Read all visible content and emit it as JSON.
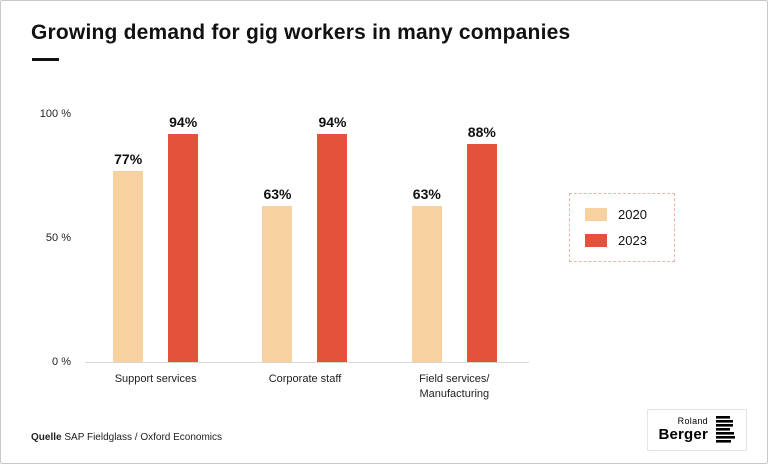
{
  "title": "Growing demand for gig workers in many companies",
  "chart_data": {
    "type": "bar",
    "title": "Growing demand for gig workers in many companies",
    "categories": [
      "Support services",
      "Corporate staff",
      "Field services/\nManufacturing"
    ],
    "series": [
      {
        "name": "2020",
        "color": "#F7D2A0",
        "values": [
          77,
          63,
          63
        ]
      },
      {
        "name": "2023",
        "color": "#E4523C",
        "values": [
          94,
          94,
          88
        ]
      }
    ],
    "value_suffix": "%",
    "ylim": [
      0,
      100
    ],
    "yticks": [
      {
        "label": "100 %",
        "value": 100
      },
      {
        "label": "50 %",
        "value": 50
      },
      {
        "label": "0 %",
        "value": 0
      }
    ],
    "grid": false,
    "legend_position": "right",
    "legend_entries": [
      "2020",
      "2023"
    ]
  },
  "footer": {
    "source_label": "Quelle",
    "source_text": "SAP Fieldglass / Oxford Economics"
  },
  "logo": {
    "line1": "Roland",
    "line2": "Berger"
  }
}
